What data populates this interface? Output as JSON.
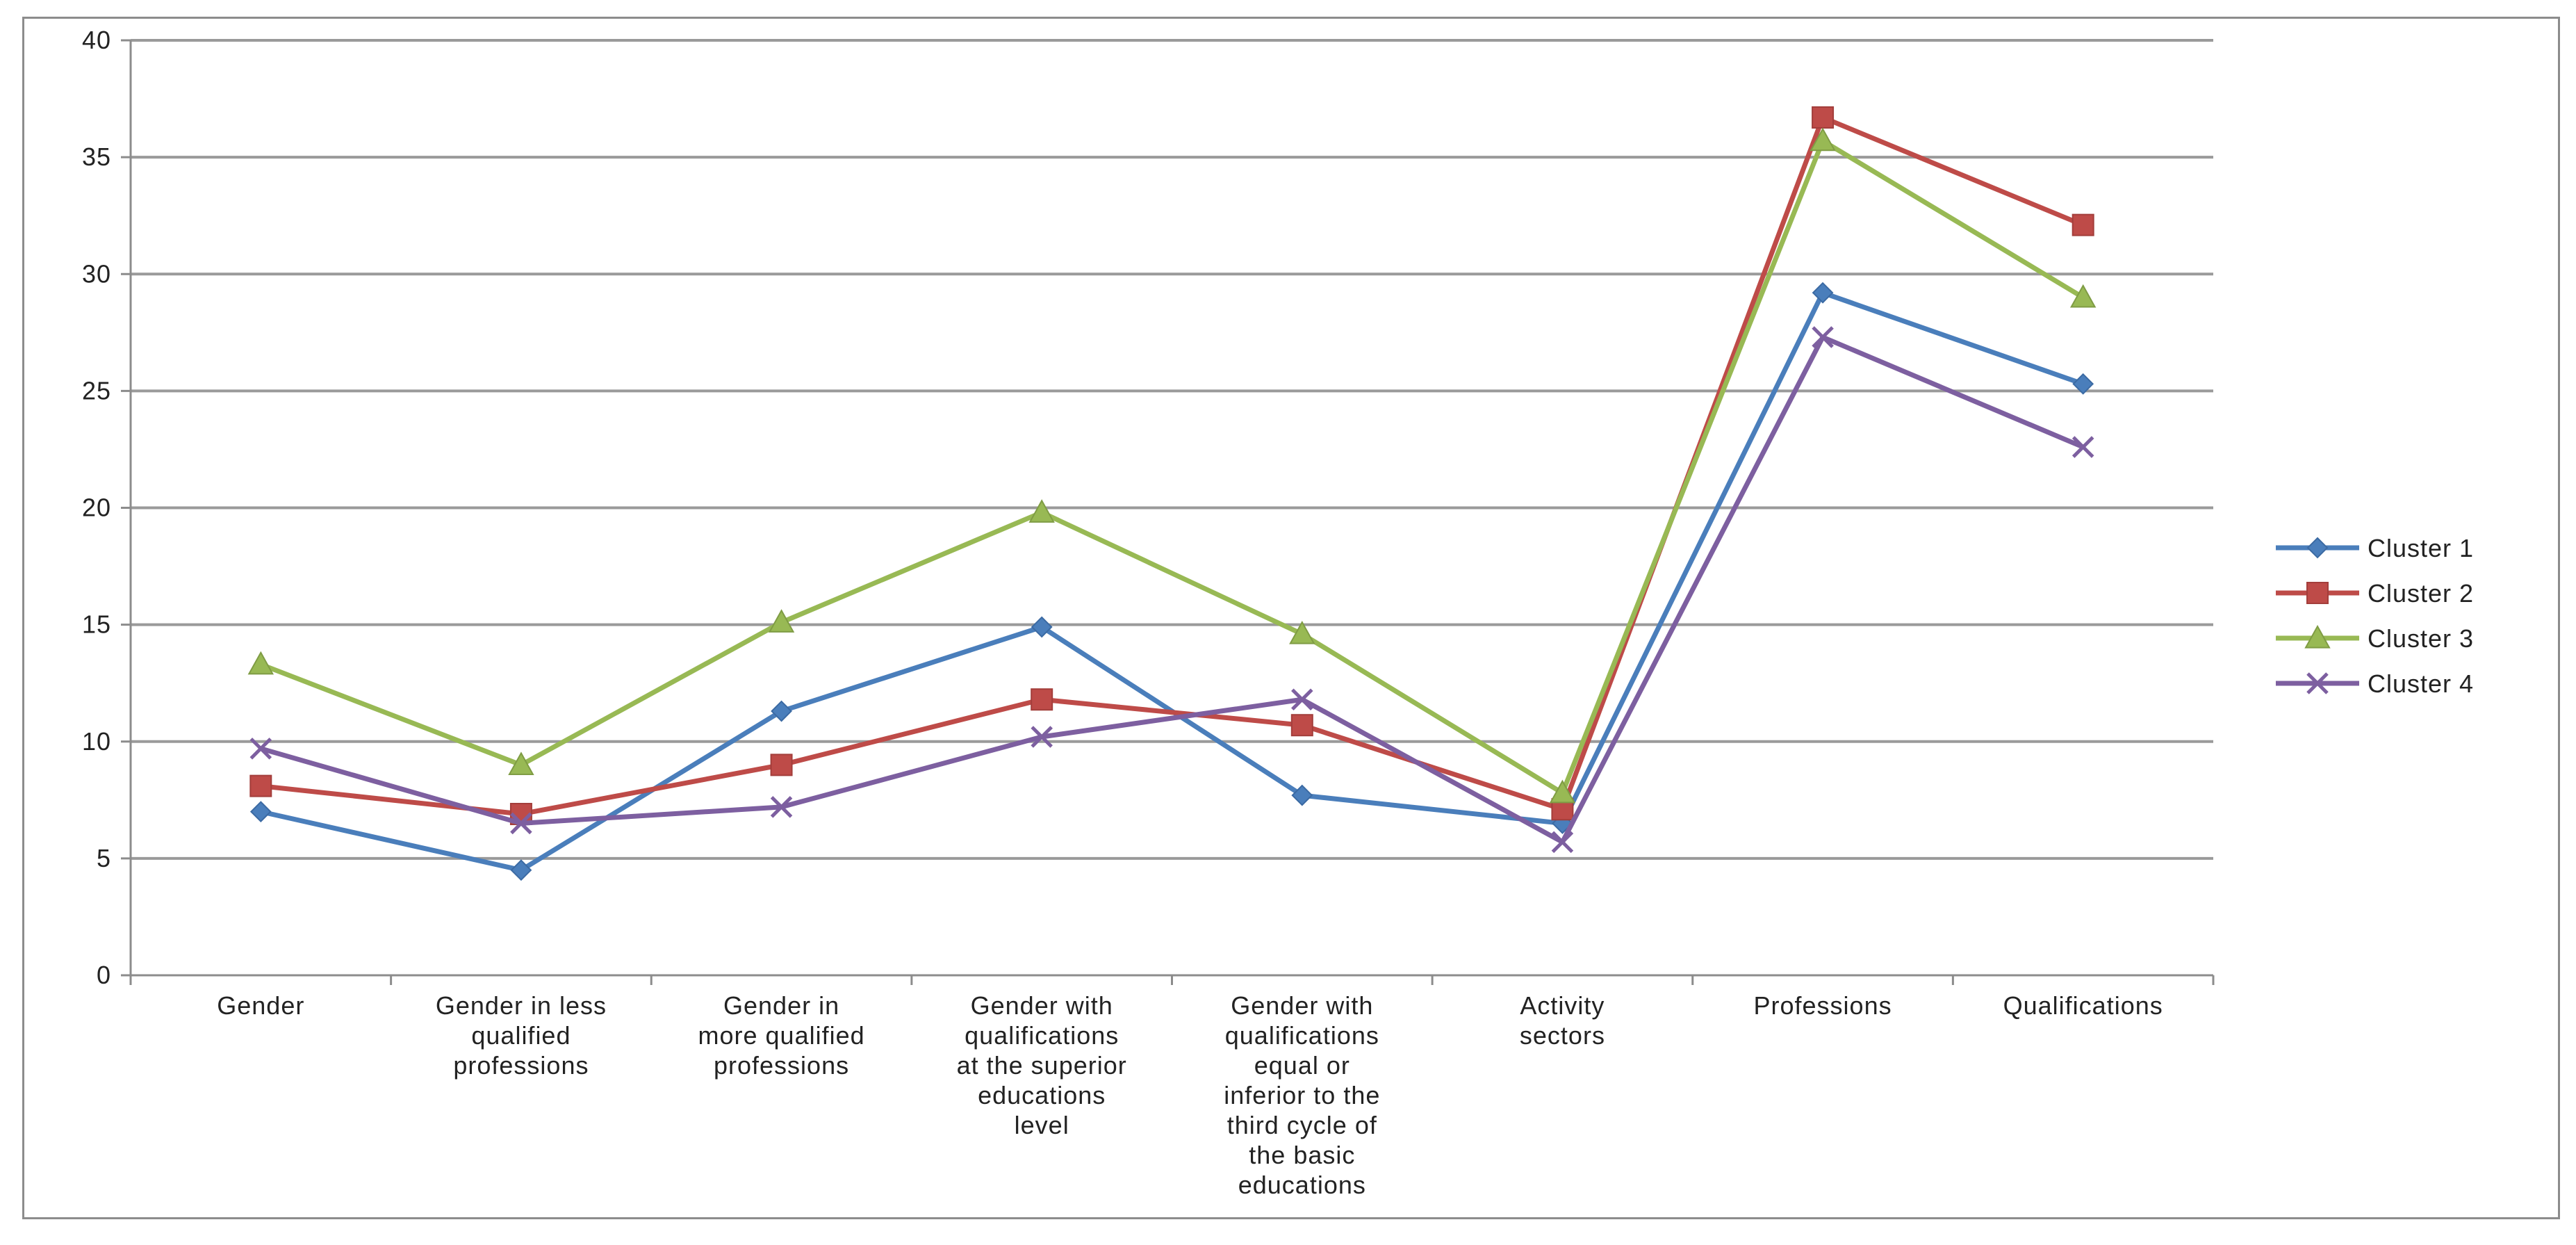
{
  "chart_data": {
    "type": "line",
    "title": "",
    "xlabel": "",
    "ylabel": "",
    "ylim": [
      0,
      40
    ],
    "yticks": [
      "0",
      "5",
      "10",
      "15",
      "20",
      "25",
      "30",
      "35",
      "40"
    ],
    "grid": "horizontal",
    "legend_position": "right",
    "categories": [
      [
        "Gender"
      ],
      [
        "Gender in less",
        "qualified",
        "professions"
      ],
      [
        "Gender in",
        "more qualified",
        "professions"
      ],
      [
        "Gender with",
        "qualifications",
        "at the superior",
        "educations",
        "level"
      ],
      [
        "Gender with",
        "qualifications",
        "equal or",
        "inferior to the",
        "third cycle of",
        "the basic",
        "educations"
      ],
      [
        "Activity",
        "sectors"
      ],
      [
        "Professions"
      ],
      [
        "Qualifications"
      ]
    ],
    "series": [
      {
        "name": "Cluster 1",
        "color": "#4a7ebb",
        "marker": "diamond",
        "values": [
          7.0,
          4.5,
          11.3,
          14.9,
          7.7,
          6.5,
          29.2,
          25.3
        ]
      },
      {
        "name": "Cluster 2",
        "color": "#be4b48",
        "marker": "square",
        "values": [
          8.1,
          6.9,
          9.0,
          11.8,
          10.7,
          7.1,
          36.7,
          32.1
        ]
      },
      {
        "name": "Cluster 3",
        "color": "#98b954",
        "marker": "triangle",
        "values": [
          13.3,
          9.0,
          15.1,
          19.8,
          14.6,
          7.8,
          35.7,
          29.0
        ]
      },
      {
        "name": "Cluster 4",
        "color": "#7d5fa0",
        "marker": "x",
        "values": [
          9.7,
          6.5,
          7.2,
          10.2,
          11.8,
          5.7,
          27.3,
          22.6
        ]
      }
    ]
  }
}
